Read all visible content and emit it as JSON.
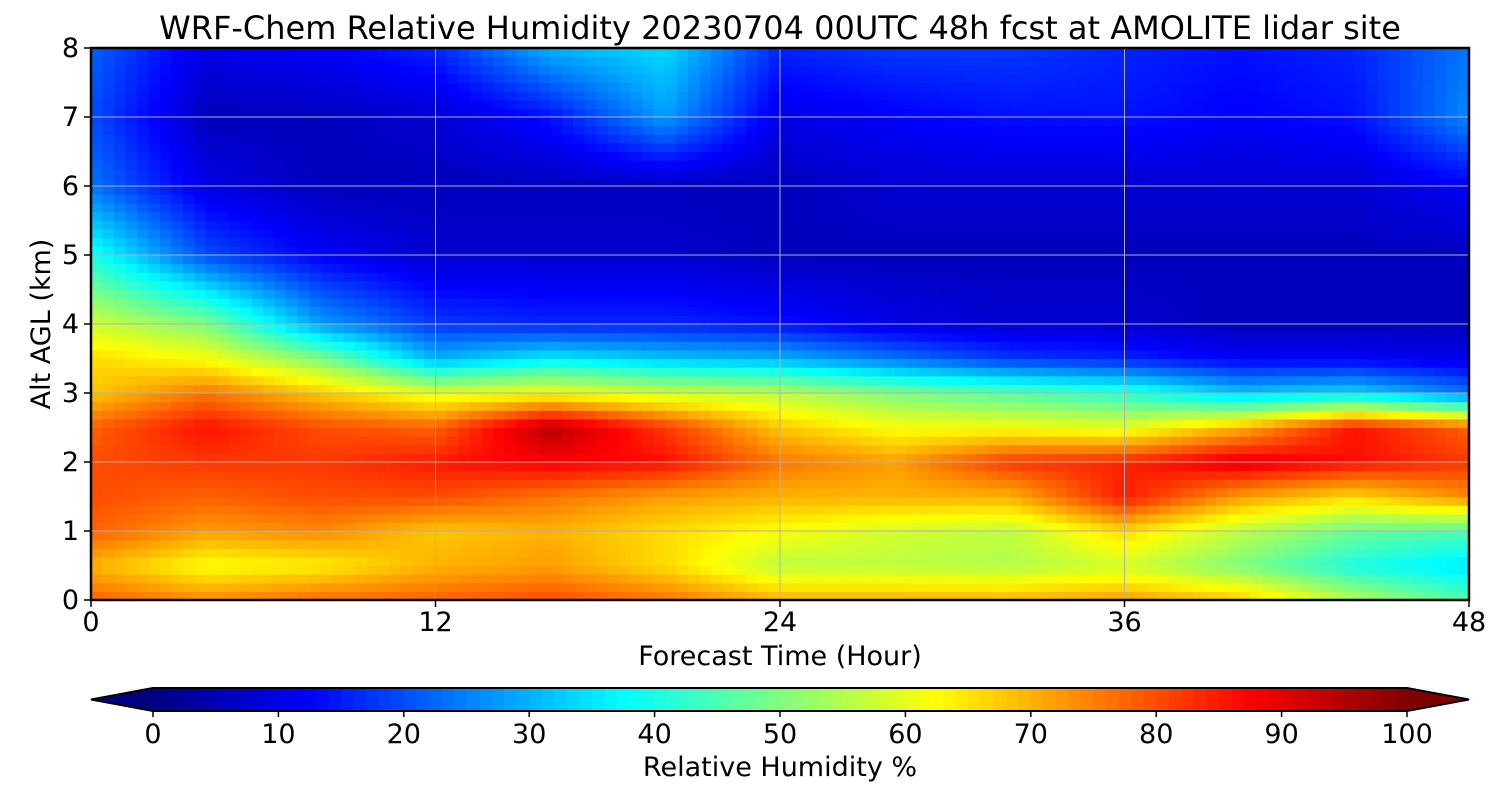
{
  "chart_data": {
    "type": "heatmap",
    "title": "WRF-Chem Relative Humidity 20230704 00UTC 48h fcst at AMOLITE lidar site",
    "xlabel": "Forecast Time (Hour)",
    "ylabel": "Alt AGL (km)",
    "xlim": [
      0,
      48
    ],
    "ylim": [
      0,
      8
    ],
    "xticks": [
      0,
      12,
      24,
      36,
      48
    ],
    "yticks": [
      0,
      1,
      2,
      3,
      4,
      5,
      6,
      7,
      8
    ],
    "grid": true,
    "colormap": "jet",
    "colorbar": {
      "label": "Relative Humidity %",
      "orientation": "horizontal",
      "placement": "bottom",
      "extend": "both",
      "range": [
        0,
        100
      ],
      "ticks": [
        0,
        10,
        20,
        30,
        40,
        50,
        60,
        70,
        80,
        90,
        100
      ]
    },
    "z_units": "%",
    "x": [
      0,
      4,
      8,
      12,
      16,
      20,
      24,
      28,
      32,
      36,
      40,
      44,
      48
    ],
    "y": [
      0,
      0.5,
      1,
      1.5,
      2,
      2.5,
      3,
      3.5,
      4,
      5,
      6,
      7,
      8
    ],
    "z": [
      [
        78,
        74,
        77,
        78,
        80,
        76,
        70,
        70,
        70,
        72,
        68,
        55,
        45
      ],
      [
        70,
        62,
        64,
        70,
        72,
        66,
        56,
        56,
        55,
        58,
        50,
        40,
        35
      ],
      [
        78,
        72,
        74,
        68,
        70,
        66,
        62,
        58,
        56,
        66,
        56,
        48,
        45
      ],
      [
        80,
        78,
        80,
        80,
        76,
        72,
        70,
        70,
        70,
        85,
        72,
        66,
        74
      ],
      [
        80,
        82,
        82,
        85,
        88,
        86,
        76,
        72,
        82,
        84,
        90,
        86,
        82
      ],
      [
        78,
        86,
        80,
        78,
        95,
        82,
        68,
        62,
        62,
        60,
        70,
        86,
        78
      ],
      [
        68,
        76,
        68,
        60,
        62,
        58,
        56,
        50,
        46,
        42,
        32,
        34,
        24
      ],
      [
        66,
        62,
        50,
        30,
        36,
        32,
        30,
        24,
        18,
        16,
        12,
        12,
        10
      ],
      [
        58,
        50,
        28,
        18,
        16,
        16,
        14,
        10,
        8,
        8,
        6,
        6,
        6
      ],
      [
        40,
        20,
        12,
        8,
        8,
        8,
        6,
        6,
        6,
        6,
        6,
        6,
        6
      ],
      [
        24,
        10,
        6,
        6,
        6,
        6,
        6,
        8,
        8,
        8,
        8,
        8,
        12
      ],
      [
        20,
        6,
        6,
        8,
        14,
        28,
        10,
        12,
        14,
        14,
        12,
        14,
        26
      ],
      [
        22,
        10,
        12,
        16,
        30,
        34,
        16,
        18,
        18,
        16,
        14,
        16,
        24
      ]
    ]
  }
}
